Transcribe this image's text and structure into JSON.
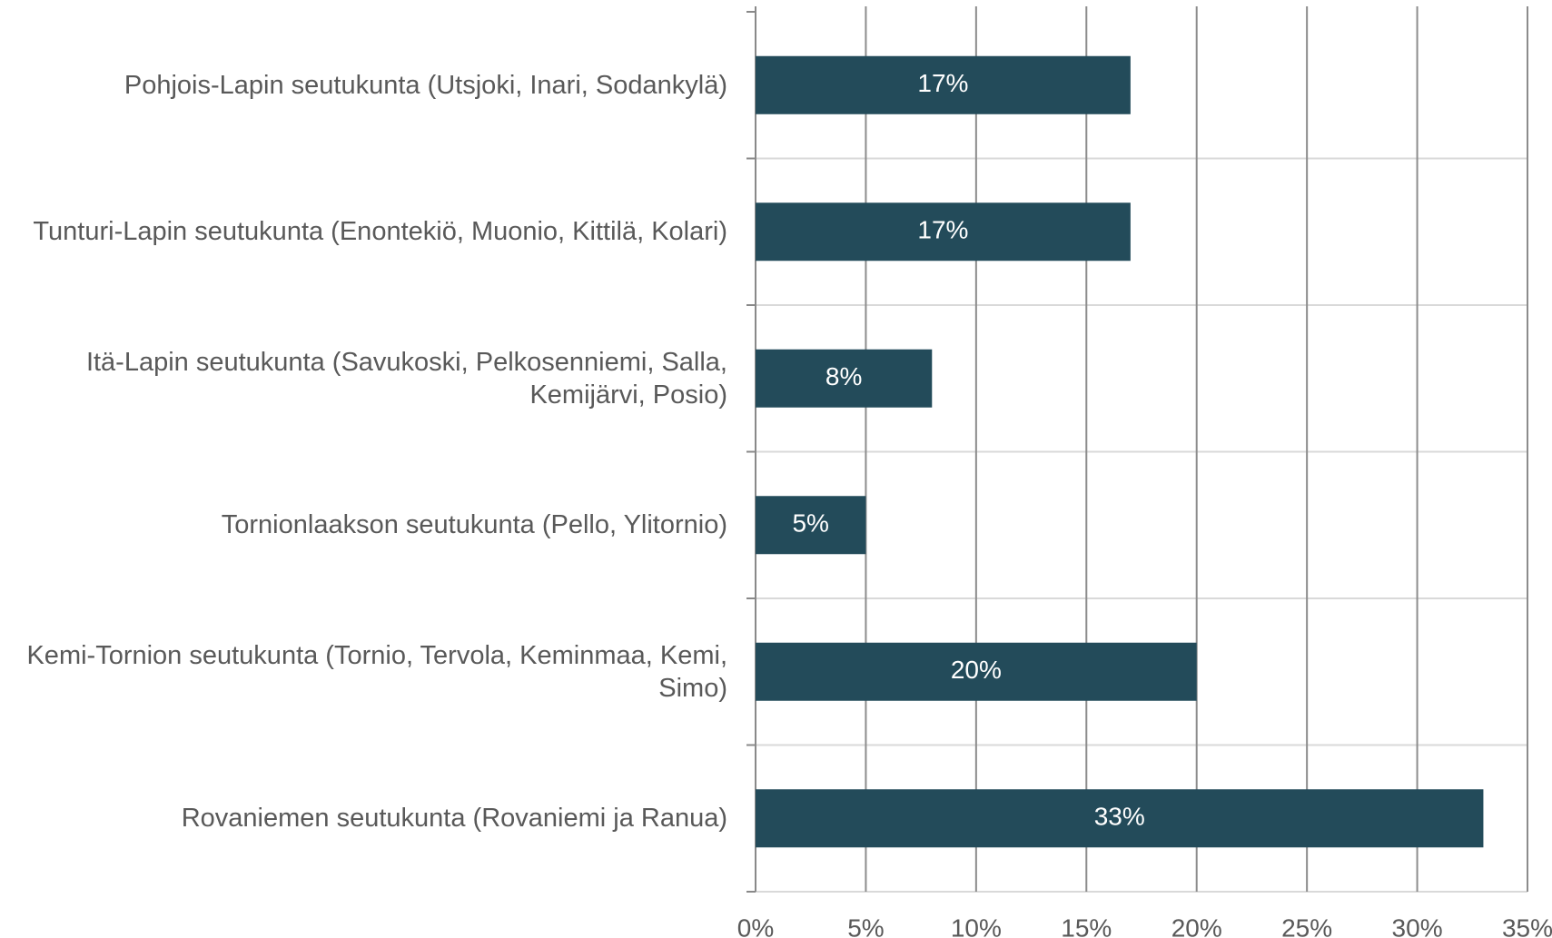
{
  "chart_data": {
    "type": "bar",
    "orientation": "horizontal",
    "categories": [
      "Pohjois-Lapin seutukunta (Utsjoki, Inari, Sodankylä)",
      "Tunturi-Lapin seutukunta (Enontekiö, Muonio, Kittilä, Kolari)",
      "Itä-Lapin seutukunta (Savukoski, Pelkosenniemi, Salla, Kemijärvi, Posio)",
      "Tornionlaakson seutukunta (Pello, Ylitornio)",
      "Kemi-Tornion seutukunta (Tornio, Tervola, Keminmaa, Kemi, Simo)",
      "Rovaniemen seutukunta (Rovaniemi ja Ranua)"
    ],
    "values": [
      17,
      17,
      8,
      5,
      20,
      33
    ],
    "value_labels": [
      "17%",
      "17%",
      "8%",
      "5%",
      "20%",
      "33%"
    ],
    "color": "#234b5a",
    "xlim": [
      0,
      35
    ],
    "xticks": [
      {
        "value": 0,
        "label": "0%"
      },
      {
        "value": 5,
        "label": "5%"
      },
      {
        "value": 10,
        "label": "10%"
      },
      {
        "value": 15,
        "label": "15%"
      },
      {
        "value": 20,
        "label": "20%"
      },
      {
        "value": 25,
        "label": "25%"
      },
      {
        "value": 30,
        "label": "30%"
      },
      {
        "value": 35,
        "label": "35%"
      }
    ],
    "grid": true
  }
}
